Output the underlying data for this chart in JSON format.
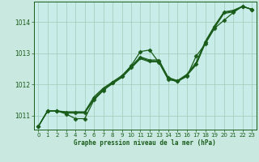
{
  "bg_color": "#c8e8e0",
  "plot_bg_color": "#c8ede8",
  "line_color": "#1a5c1a",
  "grid_color": "#a0c8b8",
  "xlabel": "Graphe pression niveau de la mer (hPa)",
  "ylim": [
    1010.55,
    1014.65
  ],
  "xlim": [
    -0.5,
    23.5
  ],
  "yticks": [
    1011,
    1012,
    1013,
    1014
  ],
  "xticks": [
    0,
    1,
    2,
    3,
    4,
    5,
    6,
    7,
    8,
    9,
    10,
    11,
    12,
    13,
    14,
    15,
    16,
    17,
    18,
    19,
    20,
    21,
    22,
    23
  ],
  "x": [
    0,
    1,
    2,
    3,
    4,
    5,
    6,
    7,
    8,
    9,
    10,
    11,
    12,
    13,
    14,
    15,
    16,
    17,
    18,
    19,
    20,
    21,
    22,
    23
  ],
  "y_main": [
    1010.65,
    1011.15,
    1011.15,
    1011.05,
    1010.9,
    1010.9,
    1011.5,
    1011.8,
    1012.05,
    1012.25,
    1012.6,
    1013.05,
    1013.1,
    1012.7,
    1012.15,
    1012.1,
    1012.25,
    1012.9,
    1013.3,
    1013.8,
    1014.05,
    1014.3,
    1014.5,
    1014.4
  ],
  "y_line2": [
    1010.65,
    1011.15,
    1011.15,
    1011.1,
    1011.1,
    1011.1,
    1011.55,
    1011.85,
    1012.05,
    1012.25,
    1012.55,
    1012.85,
    1012.75,
    1012.75,
    1012.2,
    1012.1,
    1012.3,
    1012.65,
    1013.35,
    1013.85,
    1014.3,
    1014.35,
    1014.5,
    1014.4
  ],
  "y_line3": [
    1010.65,
    1011.15,
    1011.15,
    1011.12,
    1011.12,
    1011.12,
    1011.6,
    1011.88,
    1012.08,
    1012.28,
    1012.58,
    1012.88,
    1012.78,
    1012.78,
    1012.22,
    1012.12,
    1012.32,
    1012.7,
    1013.38,
    1013.88,
    1014.32,
    1014.37,
    1014.5,
    1014.4
  ],
  "y_line4": [
    1010.65,
    1011.15,
    1011.15,
    1011.08,
    1011.08,
    1011.08,
    1011.52,
    1011.82,
    1012.02,
    1012.22,
    1012.52,
    1012.82,
    1012.72,
    1012.72,
    1012.18,
    1012.08,
    1012.28,
    1012.62,
    1013.32,
    1013.82,
    1014.27,
    1014.32,
    1014.5,
    1014.4
  ]
}
